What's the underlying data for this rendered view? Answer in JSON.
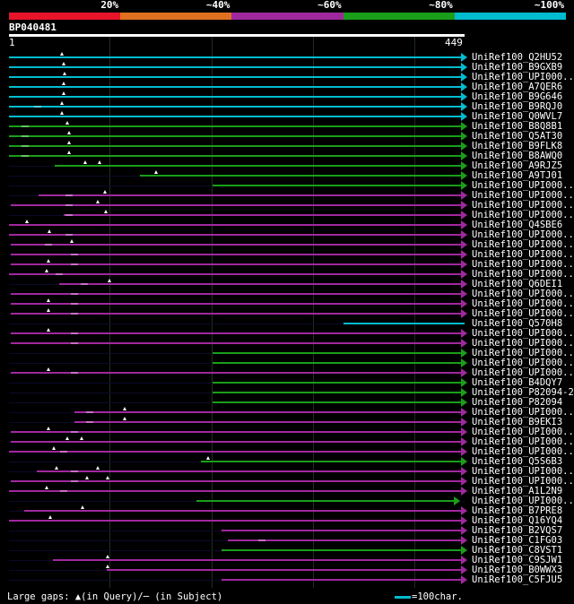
{
  "colors": {
    "background": "#000000",
    "red": "#e8142a",
    "orange": "#e07020",
    "magenta": "#a0289e",
    "green": "#1a9e1a",
    "cyan": "#00bcd0",
    "white": "#ffffff"
  },
  "legend": {
    "labels": [
      "20%",
      "~40%",
      "~60%",
      "~80%",
      "~100%"
    ],
    "segments": [
      "red",
      "orange",
      "magenta",
      "green",
      "cyan"
    ]
  },
  "query": {
    "id": "BP040481",
    "start": "1",
    "end": "449",
    "length": 449
  },
  "grid_positions": [
    100,
    200,
    300,
    400
  ],
  "hits": [
    {
      "label": "UniRef100_Q2HU52",
      "start": 1,
      "end": 449,
      "color": "cyan",
      "arrow": true,
      "gaps": [],
      "marks": [
        53
      ]
    },
    {
      "label": "UniRef100_B9GXB9",
      "start": 1,
      "end": 449,
      "color": "cyan",
      "arrow": true,
      "gaps": [],
      "marks": [
        55
      ]
    },
    {
      "label": "UniRef100_UPI000..",
      "start": 1,
      "end": 449,
      "color": "cyan",
      "arrow": true,
      "gaps": [],
      "marks": [
        56
      ]
    },
    {
      "label": "UniRef100_A7QER6",
      "start": 1,
      "end": 449,
      "color": "cyan",
      "arrow": true,
      "gaps": [],
      "marks": [
        55
      ]
    },
    {
      "label": "UniRef100_B9G646",
      "start": 1,
      "end": 449,
      "color": "cyan",
      "arrow": true,
      "gaps": [],
      "marks": [
        55
      ]
    },
    {
      "label": "UniRef100_B9RQJ0",
      "start": 1,
      "end": 449,
      "color": "cyan",
      "arrow": true,
      "gaps": [
        29
      ],
      "marks": [
        53
      ]
    },
    {
      "label": "UniRef100_Q0WVL7",
      "start": 1,
      "end": 449,
      "color": "cyan",
      "arrow": true,
      "gaps": [],
      "marks": [
        53
      ]
    },
    {
      "label": "UniRef100_B8Q8B1",
      "start": 1,
      "end": 449,
      "color": "green",
      "arrow": true,
      "gaps": [
        17
      ],
      "marks": [
        58
      ]
    },
    {
      "label": "UniRef100_Q5AT30",
      "start": 1,
      "end": 449,
      "color": "green",
      "arrow": true,
      "gaps": [
        17
      ],
      "marks": [
        60
      ]
    },
    {
      "label": "UniRef100_B9FLK8",
      "start": 1,
      "end": 449,
      "color": "green",
      "arrow": true,
      "gaps": [
        17
      ],
      "marks": [
        60
      ]
    },
    {
      "label": "UniRef100_B8AWQ0",
      "start": 1,
      "end": 449,
      "color": "green",
      "arrow": true,
      "gaps": [
        17
      ],
      "marks": [
        60
      ]
    },
    {
      "label": "UniRef100_A9RJZ5",
      "start": 46,
      "end": 449,
      "color": "green",
      "arrow": true,
      "gaps": [],
      "marks": [
        76,
        90
      ]
    },
    {
      "label": "UniRef100_A9TJ01",
      "start": 130,
      "end": 449,
      "color": "green",
      "arrow": true,
      "gaps": [],
      "marks": [
        146
      ]
    },
    {
      "label": "UniRef100_UPI000..",
      "start": 201,
      "end": 449,
      "color": "green",
      "arrow": true,
      "gaps": [],
      "marks": []
    },
    {
      "label": "UniRef100_UPI000..",
      "start": 30,
      "end": 449,
      "color": "magenta",
      "arrow": true,
      "gaps": [
        60
      ],
      "marks": [
        95
      ]
    },
    {
      "label": "UniRef100_UPI000..",
      "start": 3,
      "end": 449,
      "color": "magenta",
      "arrow": true,
      "gaps": [
        60
      ],
      "marks": [
        88
      ]
    },
    {
      "label": "UniRef100_UPI000..",
      "start": 55,
      "end": 449,
      "color": "magenta",
      "arrow": true,
      "gaps": [
        60
      ],
      "marks": [
        96
      ]
    },
    {
      "label": "UniRef100_Q4SBE6",
      "start": 1,
      "end": 449,
      "color": "magenta",
      "arrow": true,
      "gaps": [],
      "marks": [
        19
      ]
    },
    {
      "label": "UniRef100_UPI000..",
      "start": 1,
      "end": 449,
      "color": "magenta",
      "arrow": true,
      "gaps": [
        60
      ],
      "marks": [
        41
      ]
    },
    {
      "label": "UniRef100_UPI000..",
      "start": 3,
      "end": 449,
      "color": "magenta",
      "arrow": true,
      "gaps": [
        40
      ],
      "marks": [
        63
      ]
    },
    {
      "label": "UniRef100_UPI000..",
      "start": 3,
      "end": 449,
      "color": "magenta",
      "arrow": true,
      "gaps": [
        65
      ],
      "marks": []
    },
    {
      "label": "UniRef100_UPI000..",
      "start": 3,
      "end": 449,
      "color": "magenta",
      "arrow": true,
      "gaps": [
        65
      ],
      "marks": [
        40
      ]
    },
    {
      "label": "UniRef100_UPI000..",
      "start": 1,
      "end": 449,
      "color": "magenta",
      "arrow": true,
      "gaps": [
        50
      ],
      "marks": [
        38
      ]
    },
    {
      "label": "UniRef100_Q6DEI1",
      "start": 50,
      "end": 449,
      "color": "magenta",
      "arrow": true,
      "gaps": [
        75
      ],
      "marks": [
        100
      ]
    },
    {
      "label": "UniRef100_UPI000..",
      "start": 3,
      "end": 449,
      "color": "magenta",
      "arrow": true,
      "gaps": [
        65
      ],
      "marks": []
    },
    {
      "label": "UniRef100_UPI000..",
      "start": 3,
      "end": 449,
      "color": "magenta",
      "arrow": true,
      "gaps": [
        65
      ],
      "marks": [
        40
      ]
    },
    {
      "label": "UniRef100_UPI000..",
      "start": 3,
      "end": 449,
      "color": "magenta",
      "arrow": true,
      "gaps": [
        65
      ],
      "marks": [
        40
      ]
    },
    {
      "label": "UniRef100_Q570H8",
      "start": 330,
      "end": 449,
      "color": "cyan",
      "arrow": false,
      "gaps": [],
      "marks": []
    },
    {
      "label": "UniRef100_UPI000..",
      "start": 3,
      "end": 449,
      "color": "magenta",
      "arrow": true,
      "gaps": [
        65
      ],
      "marks": [
        40
      ]
    },
    {
      "label": "UniRef100_UPI000..",
      "start": 3,
      "end": 449,
      "color": "magenta",
      "arrow": true,
      "gaps": [
        65
      ],
      "marks": []
    },
    {
      "label": "UniRef100_UPI000..",
      "start": 201,
      "end": 449,
      "color": "green",
      "arrow": true,
      "gaps": [],
      "marks": []
    },
    {
      "label": "UniRef100_UPI000..",
      "start": 201,
      "end": 449,
      "color": "green",
      "arrow": true,
      "gaps": [],
      "marks": []
    },
    {
      "label": "UniRef100_UPI000..",
      "start": 3,
      "end": 449,
      "color": "magenta",
      "arrow": true,
      "gaps": [
        65
      ],
      "marks": [
        40
      ]
    },
    {
      "label": "UniRef100_B4DQY7",
      "start": 201,
      "end": 449,
      "color": "green",
      "arrow": true,
      "gaps": [],
      "marks": []
    },
    {
      "label": "UniRef100_P82094-2",
      "start": 201,
      "end": 449,
      "color": "green",
      "arrow": true,
      "gaps": [],
      "marks": []
    },
    {
      "label": "UniRef100_P82094",
      "start": 201,
      "end": 449,
      "color": "green",
      "arrow": true,
      "gaps": [],
      "marks": []
    },
    {
      "label": "UniRef100_UPI000..",
      "start": 65,
      "end": 449,
      "color": "magenta",
      "arrow": true,
      "gaps": [
        80
      ],
      "marks": [
        115
      ]
    },
    {
      "label": "UniRef100_B9EKI3",
      "start": 65,
      "end": 449,
      "color": "magenta",
      "arrow": true,
      "gaps": [
        80
      ],
      "marks": [
        115
      ]
    },
    {
      "label": "UniRef100_UPI000..",
      "start": 3,
      "end": 449,
      "color": "magenta",
      "arrow": true,
      "gaps": [
        65
      ],
      "marks": [
        40
      ]
    },
    {
      "label": "UniRef100_UPI000..",
      "start": 3,
      "end": 449,
      "color": "magenta",
      "arrow": true,
      "gaps": [],
      "marks": [
        58,
        72
      ]
    },
    {
      "label": "UniRef100_UPI000..",
      "start": 1,
      "end": 449,
      "color": "magenta",
      "arrow": true,
      "gaps": [
        55
      ],
      "marks": [
        45
      ]
    },
    {
      "label": "UniRef100_Q5S6B3",
      "start": 190,
      "end": 449,
      "color": "green",
      "arrow": true,
      "gaps": [],
      "marks": [
        197
      ]
    },
    {
      "label": "UniRef100_UPI000..",
      "start": 28,
      "end": 449,
      "color": "magenta",
      "arrow": true,
      "gaps": [
        65
      ],
      "marks": [
        48,
        88
      ]
    },
    {
      "label": "UniRef100_UPI000..",
      "start": 3,
      "end": 449,
      "color": "magenta",
      "arrow": true,
      "gaps": [
        65
      ],
      "marks": [
        78,
        98
      ]
    },
    {
      "label": "UniRef100_A1L2N9",
      "start": 1,
      "end": 449,
      "color": "magenta",
      "arrow": true,
      "gaps": [
        55
      ],
      "marks": [
        38
      ]
    },
    {
      "label": "UniRef100_UPI000..",
      "start": 185,
      "end": 442,
      "color": "green",
      "arrow": true,
      "gaps": [],
      "marks": []
    },
    {
      "label": "UniRef100_B7PRE8",
      "start": 16,
      "end": 449,
      "color": "magenta",
      "arrow": true,
      "gaps": [],
      "marks": [
        73
      ]
    },
    {
      "label": "UniRef100_Q16YQ4",
      "start": 1,
      "end": 449,
      "color": "magenta",
      "arrow": true,
      "gaps": [],
      "marks": [
        42
      ]
    },
    {
      "label": "UniRef100_B2VQS7",
      "start": 210,
      "end": 449,
      "color": "magenta",
      "arrow": true,
      "gaps": [],
      "marks": []
    },
    {
      "label": "UniRef100_C1FG03",
      "start": 216,
      "end": 449,
      "color": "magenta",
      "arrow": true,
      "gaps": [
        250
      ],
      "marks": []
    },
    {
      "label": "UniRef100_C8VST1",
      "start": 210,
      "end": 449,
      "color": "green",
      "arrow": true,
      "gaps": [],
      "marks": []
    },
    {
      "label": "UniRef100_C9SJW1",
      "start": 44,
      "end": 449,
      "color": "magenta",
      "arrow": true,
      "gaps": [],
      "marks": [
        98
      ]
    },
    {
      "label": "UniRef100_B0WWX3",
      "start": 97,
      "end": 449,
      "color": "magenta",
      "arrow": true,
      "gaps": [],
      "marks": [
        98
      ]
    },
    {
      "label": "UniRef100_C5FJU5",
      "start": 210,
      "end": 449,
      "color": "magenta",
      "arrow": true,
      "gaps": [],
      "marks": []
    }
  ],
  "footer": {
    "gaps_text": "Large gaps: ▲(in Query)/─ (in Subject)",
    "scale_text": "=100char."
  }
}
